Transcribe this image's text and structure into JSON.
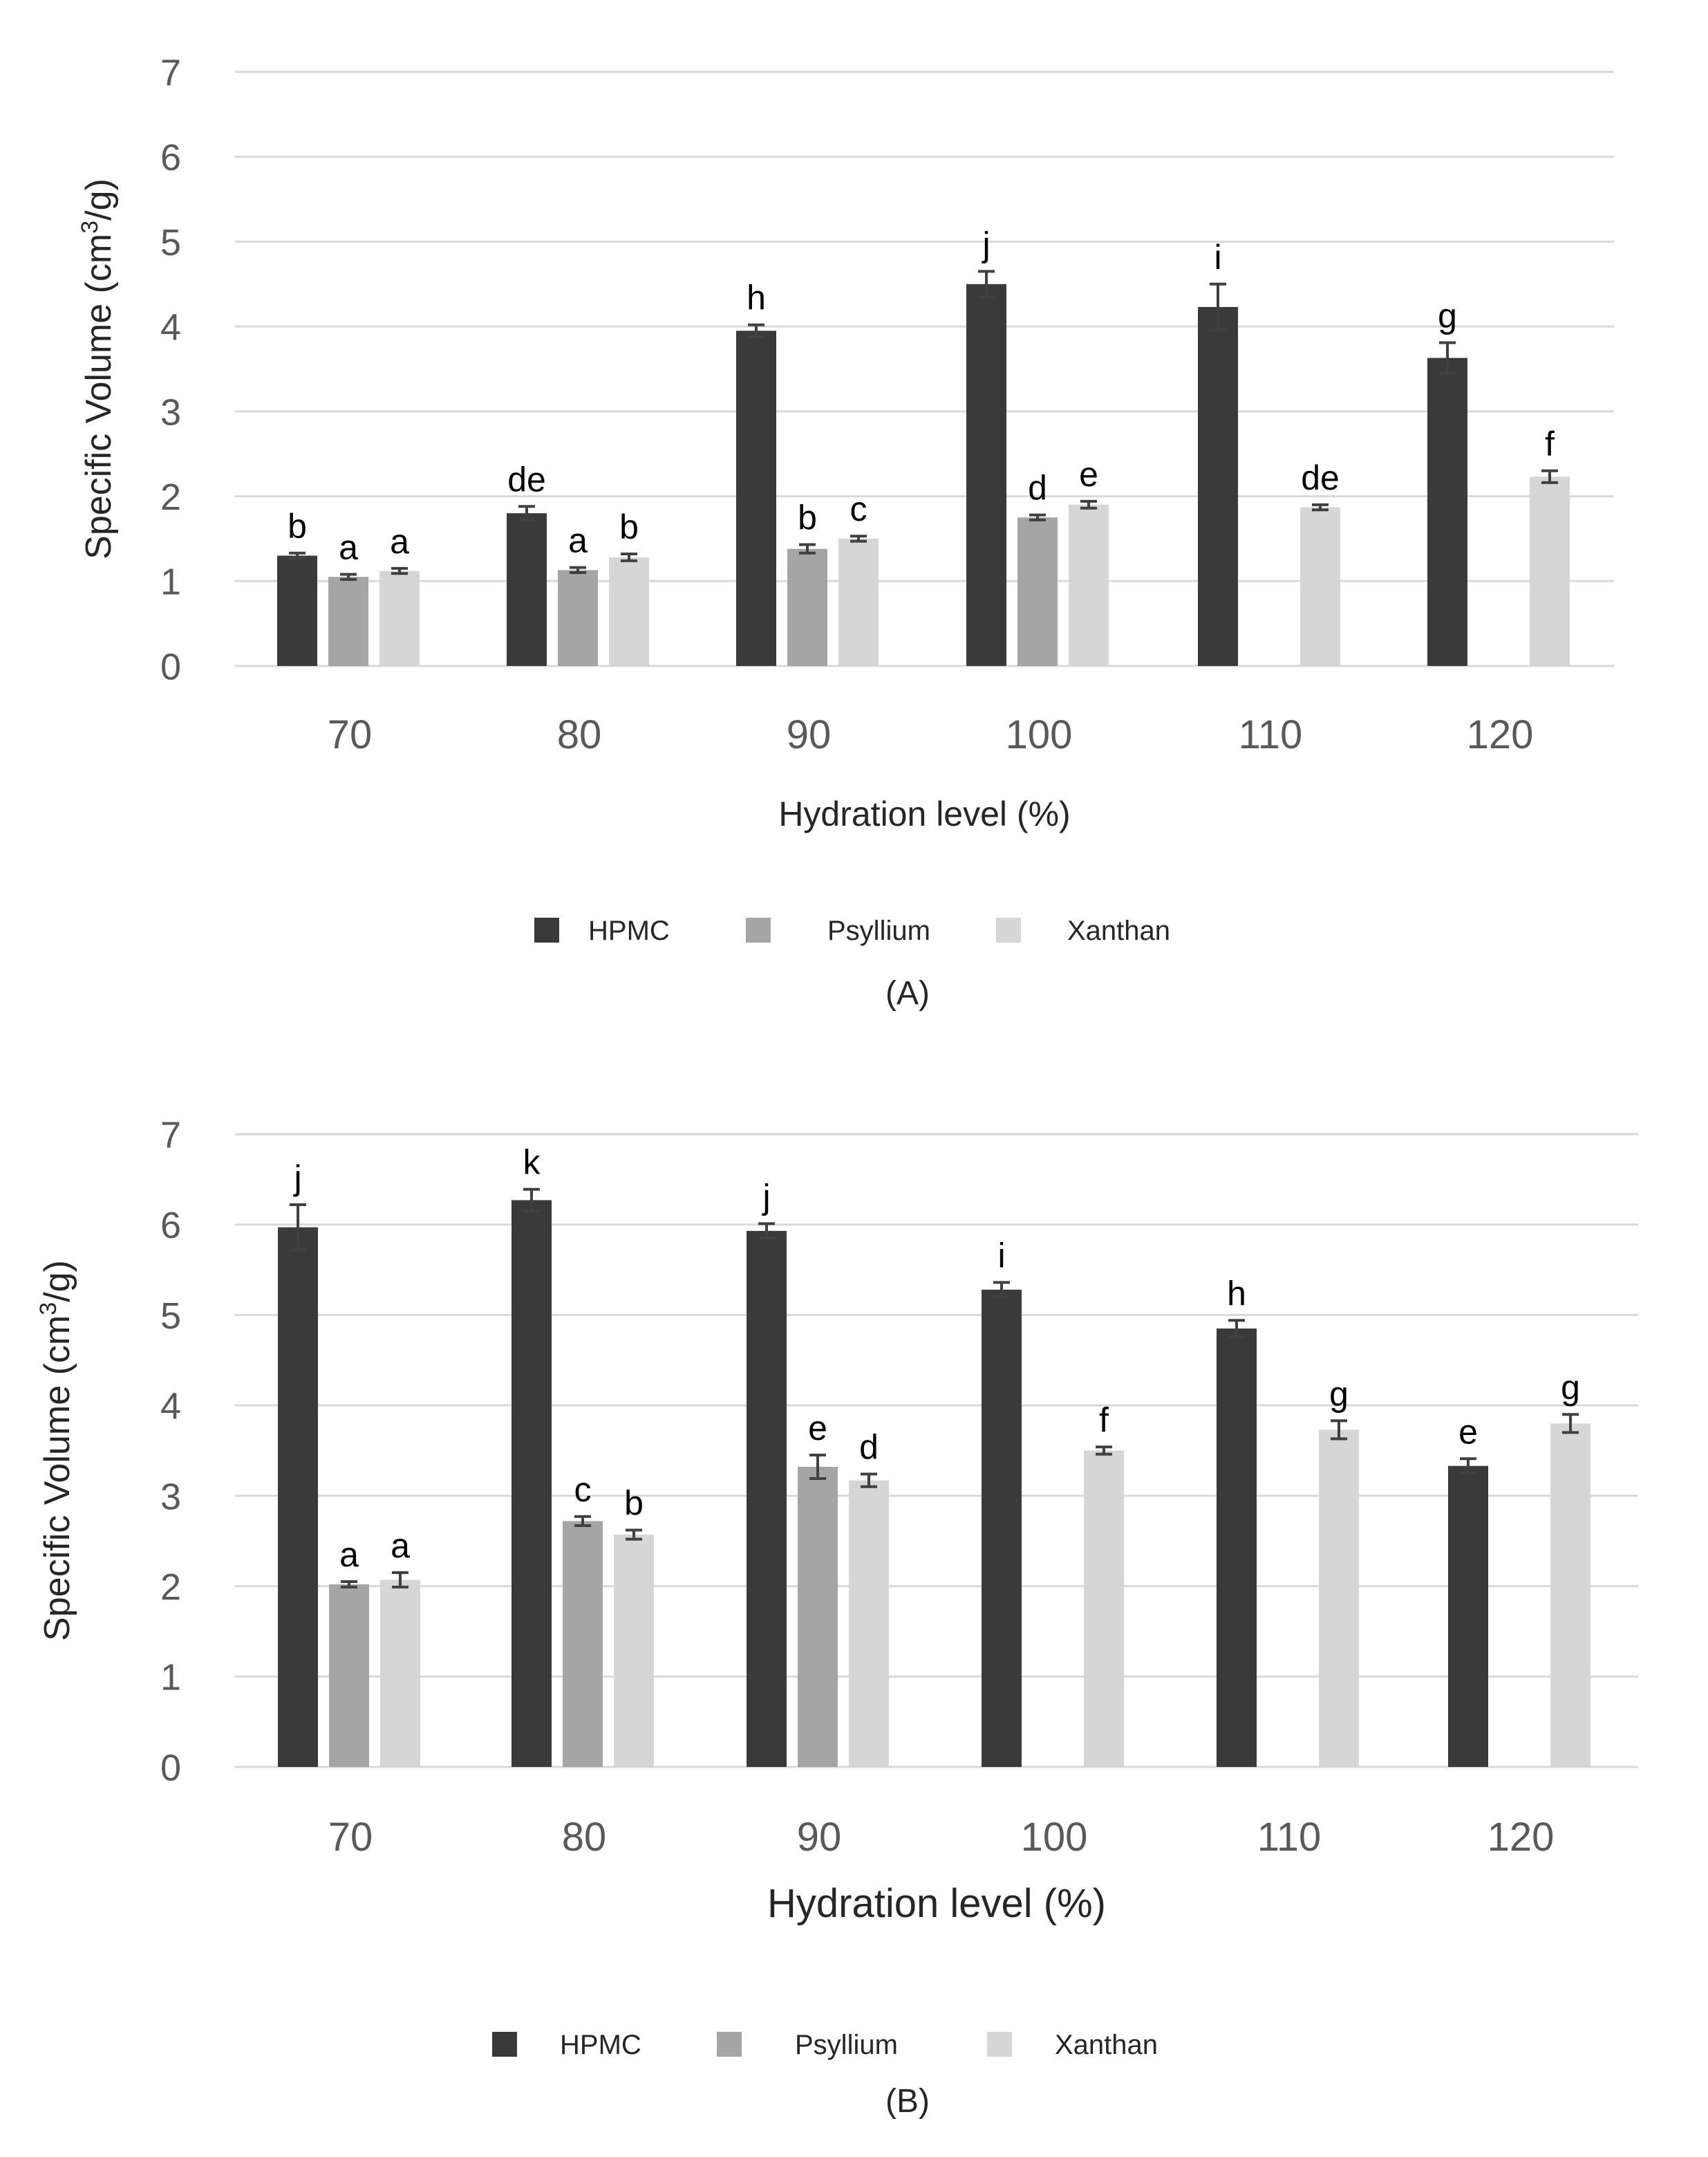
{
  "series_names": [
    "HPMC",
    "Psyllium",
    "Xanthan"
  ],
  "colors": {
    "HPMC": "#3a3a3a",
    "Psyllium": "#a5a5a5",
    "Xanthan": "#d6d6d6"
  },
  "chart_data": [
    {
      "type": "bar",
      "panel_label": "(A)",
      "categories": [
        "70",
        "80",
        "90",
        "100",
        "110",
        "120"
      ],
      "xlabel": "Hydration level (%)",
      "ylabel_prefix": "Specific Volume (cm",
      "ylabel_sup": "3",
      "ylabel_suffix": "/g)",
      "ylim": [
        0,
        7
      ],
      "yticks": [
        "0",
        "1",
        "2",
        "3",
        "4",
        "5",
        "6",
        "7"
      ],
      "grid": true,
      "legend_position": "bottom",
      "series": [
        {
          "name": "HPMC",
          "values": [
            1.3,
            1.8,
            3.95,
            4.5,
            4.23,
            3.63
          ],
          "errors": [
            0.03,
            0.08,
            0.07,
            0.15,
            0.27,
            0.18
          ],
          "letters": [
            "b",
            "de",
            "h",
            "j",
            "i",
            "g"
          ]
        },
        {
          "name": "Psyllium",
          "values": [
            1.05,
            1.13,
            1.38,
            1.75,
            null,
            null
          ],
          "errors": [
            0.03,
            0.03,
            0.05,
            0.03,
            null,
            null
          ],
          "letters": [
            "a",
            "a",
            "b",
            "d",
            "",
            ""
          ]
        },
        {
          "name": "Xanthan",
          "values": [
            1.12,
            1.28,
            1.5,
            1.9,
            1.87,
            2.23
          ],
          "errors": [
            0.03,
            0.04,
            0.03,
            0.04,
            0.03,
            0.07
          ],
          "letters": [
            "a",
            "b",
            "c",
            "e",
            "de",
            "f"
          ]
        }
      ]
    },
    {
      "type": "bar",
      "panel_label": "(B)",
      "categories": [
        "70",
        "80",
        "90",
        "100",
        "110",
        "120"
      ],
      "xlabel": "Hydration level (%)",
      "ylabel_prefix": "Specific Volume (cm",
      "ylabel_sup": "3",
      "ylabel_suffix": "/g)",
      "ylim": [
        0,
        7
      ],
      "yticks": [
        "0",
        "1",
        "2",
        "3",
        "4",
        "5",
        "6",
        "7"
      ],
      "grid": true,
      "legend_position": "bottom",
      "series": [
        {
          "name": "HPMC",
          "values": [
            5.97,
            6.27,
            5.93,
            5.28,
            4.85,
            3.33
          ],
          "errors": [
            0.25,
            0.12,
            0.08,
            0.08,
            0.09,
            0.08
          ],
          "letters": [
            "j",
            "k",
            "j",
            "i",
            "h",
            "e"
          ]
        },
        {
          "name": "Psyllium",
          "values": [
            2.02,
            2.72,
            3.32,
            null,
            null,
            null
          ],
          "errors": [
            0.03,
            0.05,
            0.13,
            null,
            null,
            null
          ],
          "letters": [
            "a",
            "c",
            "e",
            "",
            "",
            ""
          ]
        },
        {
          "name": "Xanthan",
          "values": [
            2.07,
            2.57,
            3.17,
            3.5,
            3.73,
            3.8
          ],
          "errors": [
            0.08,
            0.05,
            0.07,
            0.04,
            0.1,
            0.1
          ],
          "letters": [
            "a",
            "b",
            "d",
            "f",
            "g",
            "g"
          ]
        }
      ]
    }
  ]
}
